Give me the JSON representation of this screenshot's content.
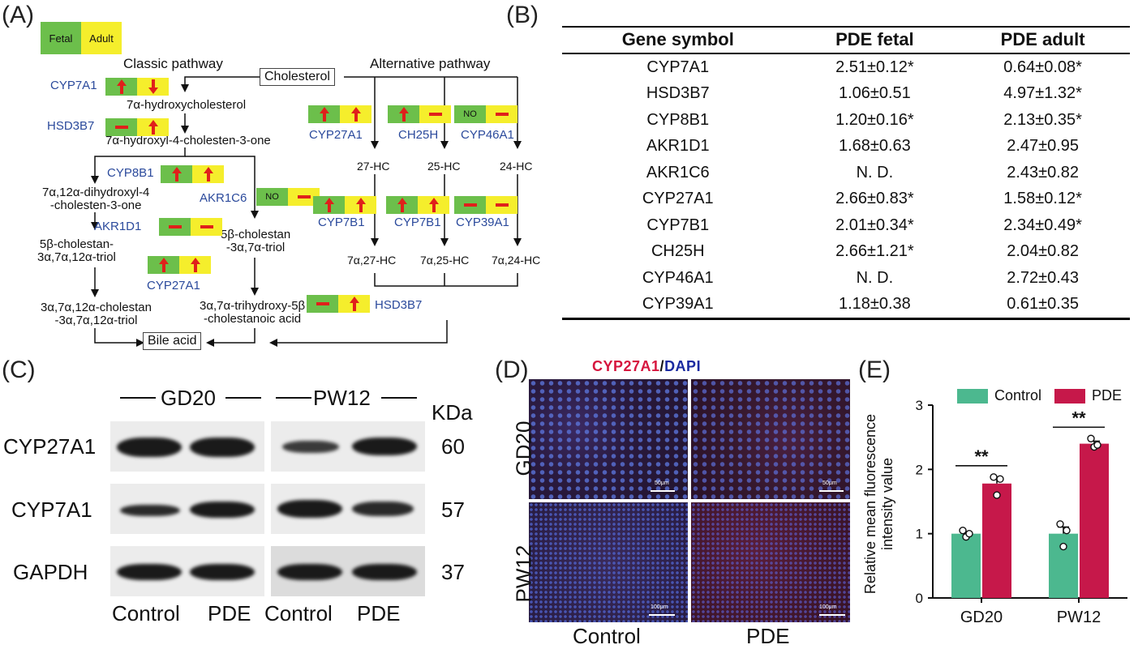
{
  "labels": {
    "a": "(A)",
    "b": "(B)",
    "c": "(C)",
    "d": "(D)",
    "e": "(E)"
  },
  "panel_a": {
    "legend": {
      "fetal": "Fetal",
      "adult": "Adult"
    },
    "classic_title": "Classic pathway",
    "alternative_title": "Alternative pathway",
    "cholesterol": "Cholesterol",
    "bile_acid": "Bile acid",
    "no_label": "NO",
    "colors": {
      "green": "#6cbf4b",
      "yellow": "#f5ee2c",
      "red": "#e0201b",
      "gene_blue": "#2b4a9c"
    },
    "genes": {
      "cyp7a1": "CYP7A1",
      "hsd3b7": "HSD3B7",
      "cyp8b1": "CYP8B1",
      "akr1c6": "AKR1C6",
      "akr1d1": "AKR1D1",
      "cyp27a1_left": "CYP27A1",
      "cyp27a1_right": "CYP27A1",
      "ch25h": "CH25H",
      "cyp46a1": "CYP46A1",
      "cyp7b1_a": "CYP7B1",
      "cyp7b1_b": "CYP7B1",
      "cyp39a1": "CYP39A1",
      "hsd3b7_bottom": "HSD3B7"
    },
    "intermediates": {
      "i1": "7α-hydroxycholesterol",
      "i2": "7α-hydroxyl-4-cholesten-3-one",
      "i3": "7α,12α-dihydroxyl-4\n-cholesten-3-one",
      "i4": "5β-cholestan-\n3α,7α,12α-triol",
      "i5": "5β-cholestan\n-3α,7α-triol",
      "i6": "3α,7α,12α-cholestan\n-3α,7α,12α-triol",
      "i7": "3α,7α-trihydroxy-5β\n-cholestanoic acid",
      "hc27": "27-HC",
      "hc25": "25-HC",
      "hc24": "24-HC",
      "hc727": "7α,27-HC",
      "hc725": "7α,25-HC",
      "hc724": "7α,24-HC"
    }
  },
  "panel_b": {
    "headers": [
      "Gene symbol",
      "PDE fetal",
      "PDE adult"
    ],
    "rows": [
      [
        "CYP7A1",
        "2.51±0.12*",
        "0.64±0.08*"
      ],
      [
        "HSD3B7",
        "1.06±0.51",
        "4.97±1.32*"
      ],
      [
        "CYP8B1",
        "1.20±0.16*",
        "2.13±0.35*"
      ],
      [
        "AKR1D1",
        "1.68±0.63",
        "2.47±0.95"
      ],
      [
        "AKR1C6",
        "N. D.",
        "2.43±0.82"
      ],
      [
        "CYP27A1",
        "2.66±0.83*",
        "1.58±0.12*"
      ],
      [
        "CYP7B1",
        "2.01±0.34*",
        "2.34±0.49*"
      ],
      [
        "CH25H",
        "2.66±1.21*",
        "2.04±0.82"
      ],
      [
        "CYP46A1",
        "N. D.",
        "2.72±0.43"
      ],
      [
        "CYP39A1",
        "1.18±0.38",
        "0.61±0.35"
      ]
    ]
  },
  "panel_c": {
    "gd20": "GD20",
    "pw12": "PW12",
    "kda": "KDa",
    "proteins": [
      "CYP27A1",
      "CYP7A1",
      "GAPDH"
    ],
    "weights": [
      "60",
      "57",
      "37"
    ],
    "lanes": [
      "Control",
      "PDE",
      "Control",
      "PDE"
    ]
  },
  "panel_d": {
    "title_cyp": "CYP27A1",
    "title_sep": "/",
    "title_dapi": "DAPI",
    "rows": [
      "GD20",
      "PW12"
    ],
    "cols": [
      "Control",
      "PDE"
    ],
    "scales": [
      "50μm",
      "50μm",
      "100μm",
      "100μm"
    ],
    "colors": {
      "cyp": "#d6153e",
      "dapi": "#1a2aa0"
    }
  },
  "panel_e": {
    "legend": [
      "Control",
      "PDE"
    ],
    "ylabel": "Relative mean fluorescence\nintensity value",
    "sig": [
      "**",
      "**"
    ],
    "colors": {
      "control": "#4cb88f",
      "pde": "#c6184a"
    }
  },
  "chart_data": {
    "type": "bar",
    "categories": [
      "GD20",
      "PW12"
    ],
    "series": [
      {
        "name": "Control",
        "values": [
          1.0,
          1.0
        ],
        "points": [
          [
            1.05,
            0.95,
            1.0
          ],
          [
            1.15,
            0.8,
            1.05
          ]
        ]
      },
      {
        "name": "PDE",
        "values": [
          1.78,
          2.4
        ],
        "points": [
          [
            1.88,
            1.6,
            1.85
          ],
          [
            2.48,
            2.35,
            2.38
          ]
        ]
      }
    ],
    "ylim": [
      0,
      3
    ],
    "yticks": [
      0,
      1,
      2,
      3
    ],
    "ylabel": "Relative mean fluorescence\nintensity value"
  }
}
